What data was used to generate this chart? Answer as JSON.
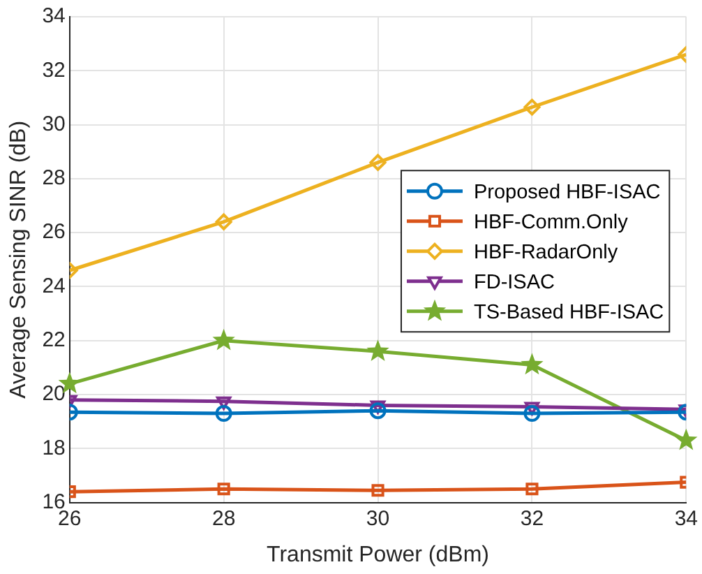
{
  "chart_data": {
    "type": "line",
    "xlabel": "Transmit Power (dBm)",
    "ylabel": "Average Sensing SINR (dB)",
    "x": [
      26,
      28,
      30,
      32,
      34
    ],
    "xlim": [
      26,
      34
    ],
    "xticks": [
      26,
      28,
      30,
      32,
      34
    ],
    "ylim": [
      16,
      34
    ],
    "yticks": [
      16,
      18,
      20,
      22,
      24,
      26,
      28,
      30,
      32,
      34
    ],
    "grid": true,
    "legend": "right",
    "series": [
      {
        "name": "Proposed HBF-ISAC",
        "color": "#0072bd",
        "marker": "circle",
        "values": [
          19.35,
          19.3,
          19.4,
          19.3,
          19.35
        ]
      },
      {
        "name": "HBF-Comm.Only",
        "color": "#d95319",
        "marker": "square",
        "values": [
          16.4,
          16.5,
          16.45,
          16.5,
          16.75
        ]
      },
      {
        "name": "HBF-RadarOnly",
        "color": "#edb120",
        "marker": "diamond",
        "values": [
          24.6,
          26.4,
          28.6,
          30.65,
          32.6
        ]
      },
      {
        "name": "FD-ISAC",
        "color": "#7e2f8e",
        "marker": "triangle",
        "values": [
          19.8,
          19.75,
          19.6,
          19.55,
          19.45
        ]
      },
      {
        "name": "TS-Based HBF-ISAC",
        "color": "#77ac30",
        "marker": "star",
        "values": [
          20.4,
          22.0,
          21.6,
          21.1,
          18.3
        ]
      }
    ]
  }
}
